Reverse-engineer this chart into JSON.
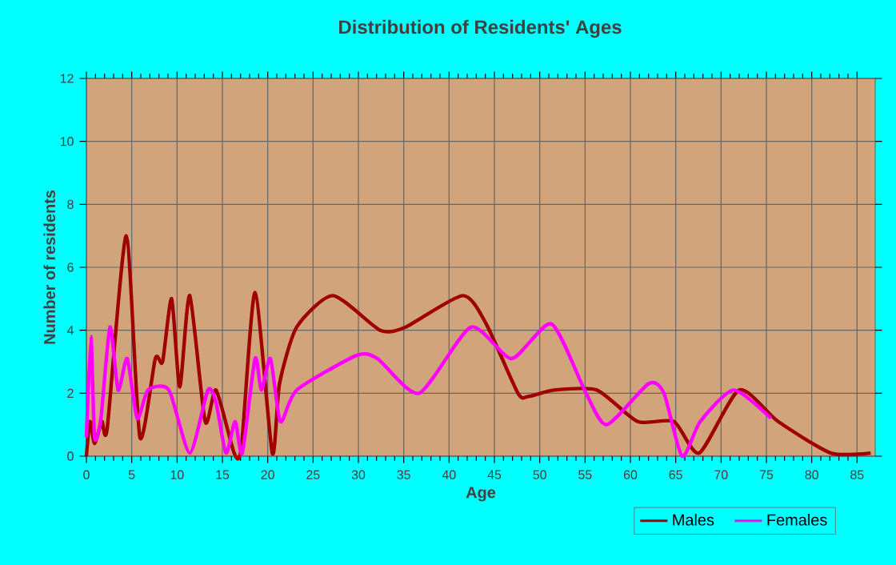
{
  "chart_data": {
    "type": "line",
    "title": "Distribution of Residents' Ages",
    "xlabel": "Age",
    "ylabel": "Number of residents",
    "xlim": [
      0,
      87
    ],
    "ylim": [
      0,
      12
    ],
    "xticks": [
      0,
      5,
      10,
      15,
      20,
      25,
      30,
      35,
      40,
      45,
      50,
      55,
      60,
      65,
      70,
      75,
      80,
      85
    ],
    "yticks": [
      0,
      2,
      4,
      6,
      8,
      10,
      12
    ],
    "grid": true,
    "legend": "bottom",
    "series": [
      {
        "name": "Males",
        "color": "#a00000",
        "x": [
          0,
          0.4,
          0.9,
          1.7,
          2.3,
          4.4,
          5.9,
          7.6,
          8.4,
          9.4,
          10.3,
          11.4,
          13.1,
          14.3,
          16.3,
          17.1,
          18.6,
          20.5,
          21.3,
          23.2,
          27.2,
          32.4,
          35.2,
          41.5,
          44.1,
          47.6,
          48.8,
          51.6,
          56.3,
          60.8,
          64.8,
          67.6,
          72,
          76.3,
          82.1,
          86.5
        ],
        "values": [
          0,
          1.1,
          0.4,
          1.1,
          0.9,
          7.0,
          0.6,
          3.1,
          3.0,
          5.0,
          2.2,
          5.1,
          1.1,
          2.1,
          0.1,
          0.3,
          5.2,
          0.1,
          2.3,
          4.1,
          5.1,
          4.0,
          4.1,
          5.1,
          4.2,
          2.0,
          1.9,
          2.1,
          2.1,
          1.1,
          1.1,
          0.1,
          2.1,
          1.1,
          0.1,
          0.1
        ]
      },
      {
        "name": "Females",
        "color": "#ff00ff",
        "x": [
          0,
          0.5,
          0.9,
          1.6,
          2.6,
          3.5,
          4.5,
          5.6,
          6.8,
          9.1,
          11.4,
          13.4,
          14.3,
          15.4,
          16.4,
          17.2,
          18.6,
          19.3,
          20.3,
          21.4,
          23.2,
          29.8,
          32.1,
          36.7,
          42.4,
          46.9,
          51.3,
          55.1,
          57.4,
          62,
          63.7,
          65.7,
          67.7,
          71.4,
          75.5
        ],
        "values": [
          0.6,
          3.8,
          0.6,
          1.2,
          4.1,
          2.1,
          3.1,
          1.2,
          2.1,
          2.1,
          0.1,
          2.1,
          1.7,
          0.1,
          1.1,
          0.1,
          3.1,
          2.1,
          3.1,
          1.1,
          2.1,
          3.2,
          3.1,
          2.0,
          4.1,
          3.1,
          4.2,
          2.0,
          1.0,
          2.3,
          2.0,
          0,
          1.1,
          2.1,
          1.2
        ]
      }
    ]
  }
}
